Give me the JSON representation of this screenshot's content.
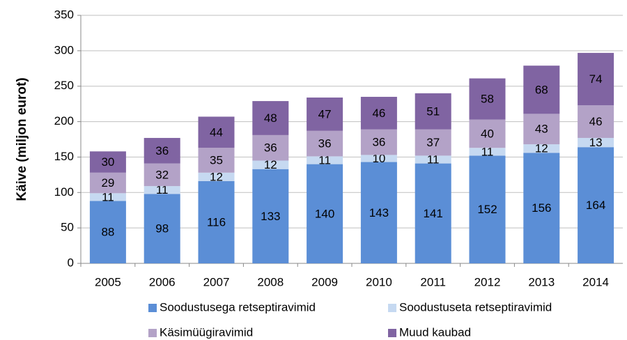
{
  "chart_data": {
    "type": "stacked_bar",
    "y_axis_label": "Käive (miljon eurot)",
    "categories": [
      "2005",
      "2006",
      "2007",
      "2008",
      "2009",
      "2010",
      "2011",
      "2012",
      "2013",
      "2014"
    ],
    "series": [
      {
        "name": "Soodustusega retseptiravimid",
        "color": "#5b8ed6",
        "values": [
          88,
          98,
          116,
          133,
          140,
          143,
          141,
          152,
          156,
          164
        ]
      },
      {
        "name": "Soodustuseta retseptiravimid",
        "color": "#c6d9f1",
        "values": [
          11,
          11,
          12,
          12,
          11,
          10,
          11,
          11,
          12,
          13
        ]
      },
      {
        "name": "Käsimüügiravimid",
        "color": "#b3a2c7",
        "values": [
          29,
          32,
          35,
          36,
          36,
          36,
          37,
          40,
          43,
          46
        ]
      },
      {
        "name": "Muud kaubad",
        "color": "#8064a2",
        "values": [
          30,
          36,
          44,
          48,
          47,
          46,
          51,
          58,
          68,
          74
        ]
      }
    ],
    "ylim": [
      0,
      350
    ],
    "yticks": [
      0,
      50,
      100,
      150,
      200,
      250,
      300,
      350
    ],
    "grid": true,
    "legend": "bottom"
  }
}
